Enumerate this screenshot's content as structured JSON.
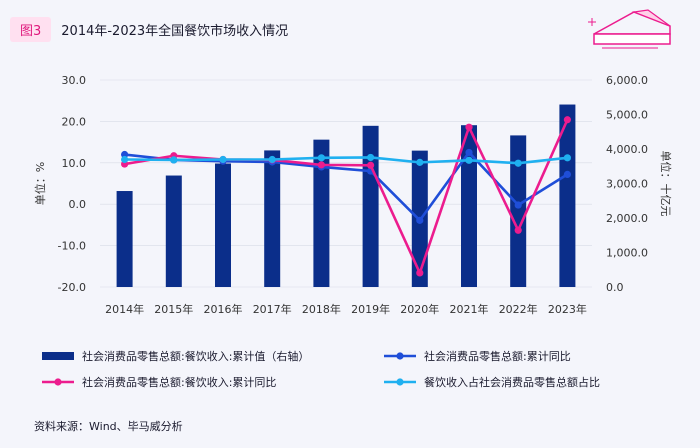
{
  "header": {
    "figure_label": "图3",
    "title": "2014年-2023年全国餐饮市场收入情况"
  },
  "chart_data": {
    "type": "bar+line",
    "title": "2014年-2023年全国餐饮市场收入情况",
    "categories": [
      "2014年",
      "2015年",
      "2016年",
      "2017年",
      "2018年",
      "2019年",
      "2020年",
      "2021年",
      "2022年",
      "2023年"
    ],
    "left_axis": {
      "label": "单位：%",
      "ylim": [
        -20,
        30
      ],
      "ticks": [
        "-20.0",
        "-10.0",
        "0.0",
        "10.0",
        "20.0",
        "30.0"
      ]
    },
    "right_axis": {
      "label": "单位：十亿元",
      "ylim": [
        0,
        6000
      ],
      "ticks": [
        "0.0",
        "1,000.0",
        "2,000.0",
        "3,000.0",
        "4,000.0",
        "5,000.0",
        "6,000.0"
      ]
    },
    "series": [
      {
        "name": "社会消费品零售总额:餐饮收入:累计值（右轴）",
        "type": "bar",
        "axis": "right",
        "color": "#0b2e8a",
        "values": [
          2782,
          3231,
          3579,
          3959,
          4271,
          4672,
          3953,
          4690,
          4394,
          5289
        ]
      },
      {
        "name": "社会消费品零售总额:累计同比",
        "type": "line",
        "axis": "left",
        "color": "#1f4ed8",
        "values": [
          12.0,
          10.7,
          10.4,
          10.2,
          9.0,
          8.0,
          -3.9,
          12.5,
          -0.2,
          7.2
        ]
      },
      {
        "name": "社会消费品零售总额:餐饮收入:累计同比",
        "type": "line",
        "axis": "left",
        "color": "#ec1c8e",
        "values": [
          9.7,
          11.7,
          10.8,
          10.7,
          9.5,
          9.4,
          -16.6,
          18.6,
          -6.3,
          20.4
        ]
      },
      {
        "name": "餐饮收入占社会消费品零售总额占比",
        "type": "line",
        "axis": "left",
        "color": "#1fb0f0",
        "values": [
          10.8,
          10.7,
          10.8,
          10.8,
          11.2,
          11.3,
          10.1,
          10.6,
          9.9,
          11.2
        ]
      }
    ]
  },
  "source": "资料来源：Wind、毕马威分析"
}
